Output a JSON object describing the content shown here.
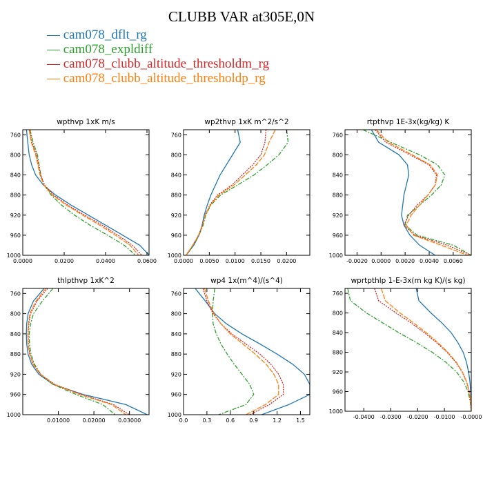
{
  "title": "CLUBB VAR at305E,0N",
  "legend": [
    {
      "label": "cam078_dflt_rg",
      "color": "#1f77b4",
      "dash": ""
    },
    {
      "label": "cam078_expldiff",
      "color": "#2ca02c",
      "dash": "6,2,2,2"
    },
    {
      "label": "cam078_clubb_altitude_thresholdm_rg",
      "color": "#d62728",
      "dash": "2,1.5"
    },
    {
      "label": "cam078_clubb_altitude_thresholdp_rg",
      "color": "#ff7f0e",
      "dash": "7,2"
    }
  ],
  "chart_data": [
    {
      "type": "line",
      "title": "wpthvp  1xK m/s",
      "xlim": [
        0,
        0.061
      ],
      "ylim": [
        1000,
        750
      ],
      "xticks": [
        "0.0000",
        "0.0200",
        "0.0400",
        "0.0600"
      ],
      "xtick_values": [
        0,
        0.02,
        0.04,
        0.06
      ],
      "yticks": [
        "760",
        "800",
        "840",
        "880",
        "920",
        "960",
        "1000"
      ],
      "y": [
        750,
        775,
        800,
        820,
        840,
        860,
        880,
        900,
        920,
        940,
        960,
        980,
        1000
      ],
      "series": [
        {
          "name": "cam078_dflt_rg",
          "x": [
            0.0018,
            0.0024,
            0.0031,
            0.0043,
            0.0062,
            0.0099,
            0.0158,
            0.0233,
            0.0317,
            0.04,
            0.0483,
            0.0565,
            0.0612
          ]
        },
        {
          "name": "cam078_expldiff",
          "x": [
            0.0035,
            0.005,
            0.0071,
            0.0079,
            0.0087,
            0.0103,
            0.0137,
            0.0187,
            0.025,
            0.0325,
            0.041,
            0.049,
            0.0545
          ]
        },
        {
          "name": "cam078_clubb_altitude_thresholdm_rg",
          "x": [
            0.0033,
            0.0044,
            0.0066,
            0.0077,
            0.0086,
            0.0105,
            0.0148,
            0.0217,
            0.0299,
            0.0384,
            0.046,
            0.053,
            0.0575
          ]
        },
        {
          "name": "cam078_clubb_altitude_thresholdp_rg",
          "x": [
            0.0031,
            0.0041,
            0.0062,
            0.0073,
            0.0083,
            0.0102,
            0.0143,
            0.021,
            0.029,
            0.0372,
            0.0448,
            0.0518,
            0.056
          ]
        }
      ]
    },
    {
      "type": "line",
      "title": "wp2thvp  1xK m^2/s^2",
      "xlim": [
        0,
        0.0245
      ],
      "ylim": [
        1000,
        750
      ],
      "xticks": [
        "0.0000",
        "0.0050",
        "0.0100",
        "0.0150",
        "0.0200"
      ],
      "xtick_values": [
        0,
        0.005,
        0.01,
        0.015,
        0.02
      ],
      "yticks": [
        "760",
        "800",
        "840",
        "880",
        "920",
        "960",
        "1000"
      ],
      "y": [
        750,
        775,
        800,
        820,
        840,
        860,
        880,
        900,
        920,
        940,
        960,
        980,
        1000
      ],
      "series": [
        {
          "name": "cam078_dflt_rg",
          "x": [
            0.0105,
            0.011,
            0.0095,
            0.0083,
            0.0071,
            0.0062,
            0.0053,
            0.0046,
            0.004,
            0.0036,
            0.003,
            0.002,
            0.0005
          ]
        },
        {
          "name": "cam078_expldiff",
          "x": [
            0.02,
            0.0203,
            0.0185,
            0.0162,
            0.0137,
            0.0105,
            0.0072,
            0.0053,
            0.0043,
            0.0038,
            0.003,
            0.0019,
            0.0005
          ]
        },
        {
          "name": "cam078_clubb_altitude_thresholdm_rg",
          "x": [
            0.016,
            0.0158,
            0.015,
            0.0134,
            0.0114,
            0.0094,
            0.0066,
            0.0051,
            0.0042,
            0.0037,
            0.0029,
            0.0018,
            0.0005
          ]
        },
        {
          "name": "cam078_clubb_altitude_thresholdp_rg",
          "x": [
            0.0178,
            0.0166,
            0.0157,
            0.0141,
            0.012,
            0.0098,
            0.0069,
            0.0052,
            0.0042,
            0.0037,
            0.0029,
            0.0018,
            0.0005
          ]
        }
      ]
    },
    {
      "type": "line",
      "title": "rtpthvp  1E-3x(kg/kg) K",
      "xlim": [
        -0.003,
        0.0075
      ],
      "ylim": [
        1000,
        750
      ],
      "xticks": [
        "-0.0020",
        "0.0000",
        "0.0020",
        "0.0040",
        "0.0060"
      ],
      "xtick_values": [
        -0.002,
        0,
        0.002,
        0.004,
        0.006
      ],
      "yticks": [
        "760",
        "800",
        "840",
        "880",
        "920",
        "960",
        "1000"
      ],
      "y": [
        750,
        775,
        800,
        820,
        840,
        860,
        880,
        900,
        920,
        940,
        960,
        980,
        1000
      ],
      "series": [
        {
          "name": "cam078_dflt_rg",
          "x": [
            -0.0008,
            -0.0002,
            0.0015,
            0.0022,
            0.0023,
            0.0021,
            0.0019,
            0.0018,
            0.0017,
            0.0019,
            0.0024,
            0.0032,
            0.0045
          ]
        },
        {
          "name": "cam078_expldiff",
          "x": [
            -0.0015,
            0.0008,
            0.0032,
            0.0047,
            0.0053,
            0.005,
            0.0042,
            0.0032,
            0.0022,
            0.002,
            0.003,
            0.006,
            0.0075
          ]
        },
        {
          "name": "cam078_clubb_altitude_thresholdm_rg",
          "x": [
            -0.0005,
            0.0004,
            0.0024,
            0.004,
            0.0046,
            0.0045,
            0.0039,
            0.003,
            0.0023,
            0.0019,
            0.0028,
            0.0055,
            0.0075
          ]
        },
        {
          "name": "cam078_clubb_altitude_thresholdp_rg",
          "x": [
            -0.0004,
            0.0006,
            0.0026,
            0.0041,
            0.0047,
            0.0045,
            0.0039,
            0.0032,
            0.0025,
            0.0021,
            0.0027,
            0.005,
            0.0072
          ]
        }
      ]
    },
    {
      "type": "line",
      "title": "thlpthvp  1xK^2",
      "xlim": [
        0,
        0.0355
      ],
      "ylim": [
        1000,
        750
      ],
      "xticks": [
        "0.01000",
        "0.02000",
        "0.03000"
      ],
      "xtick_values": [
        0.01,
        0.02,
        0.03
      ],
      "yticks": [
        "760",
        "800",
        "840",
        "880",
        "920",
        "960",
        "1000"
      ],
      "y": [
        750,
        775,
        800,
        820,
        840,
        860,
        880,
        900,
        920,
        940,
        960,
        980,
        1000
      ],
      "series": [
        {
          "name": "cam078_dflt_rg",
          "x": [
            0.006,
            0.003,
            0.0015,
            0.0011,
            0.001,
            0.0011,
            0.0015,
            0.0025,
            0.0045,
            0.0085,
            0.017,
            0.029,
            0.035
          ]
        },
        {
          "name": "cam078_expldiff",
          "x": [
            0.0085,
            0.0055,
            0.003,
            0.0022,
            0.0018,
            0.0019,
            0.0023,
            0.0033,
            0.005,
            0.0085,
            0.015,
            0.0225,
            0.026
          ]
        },
        {
          "name": "cam078_clubb_altitude_thresholdm_rg",
          "x": [
            0.007,
            0.004,
            0.0022,
            0.0017,
            0.0015,
            0.0016,
            0.002,
            0.003,
            0.005,
            0.009,
            0.0165,
            0.0255,
            0.03
          ]
        },
        {
          "name": "cam078_clubb_altitude_thresholdp_rg",
          "x": [
            0.0065,
            0.0037,
            0.002,
            0.0016,
            0.0014,
            0.0015,
            0.0019,
            0.0029,
            0.0049,
            0.0088,
            0.016,
            0.025,
            0.029
          ]
        }
      ]
    },
    {
      "type": "line",
      "title": "wp4  1x(m^4)/(s^4)",
      "xlim": [
        0,
        1.62
      ],
      "ylim": [
        1000,
        750
      ],
      "xticks": [
        "0.0",
        "0.3",
        "0.6",
        "0.9",
        "1.2",
        "1.5"
      ],
      "xtick_values": [
        0,
        0.3,
        0.6,
        0.9,
        1.2,
        1.5
      ],
      "yticks": [
        "760",
        "800",
        "840",
        "880",
        "920",
        "960",
        "1000"
      ],
      "y": [
        750,
        775,
        800,
        820,
        840,
        860,
        880,
        900,
        920,
        940,
        960,
        980,
        1000
      ],
      "series": [
        {
          "name": "cam078_dflt_rg",
          "x": [
            0.15,
            0.28,
            0.4,
            0.55,
            0.75,
            0.98,
            1.2,
            1.4,
            1.55,
            1.62,
            1.62,
            1.35,
            1.0
          ]
        },
        {
          "name": "cam078_expldiff",
          "x": [
            0.4,
            0.38,
            0.37,
            0.38,
            0.42,
            0.48,
            0.56,
            0.65,
            0.75,
            0.85,
            0.9,
            0.8,
            0.45
          ]
        },
        {
          "name": "cam078_clubb_altitude_thresholdm_rg",
          "x": [
            0.25,
            0.3,
            0.38,
            0.48,
            0.62,
            0.8,
            0.98,
            1.12,
            1.22,
            1.28,
            1.28,
            1.1,
            0.85
          ]
        },
        {
          "name": "cam078_clubb_altitude_thresholdp_rg",
          "x": [
            0.27,
            0.32,
            0.39,
            0.48,
            0.6,
            0.76,
            0.92,
            1.06,
            1.16,
            1.22,
            1.22,
            1.05,
            0.8
          ]
        }
      ]
    },
    {
      "type": "line",
      "title": "wprtpthlp  1-E-3x(m kg K)/(s kg)",
      "xlim": [
        -0.047,
        0.0
      ],
      "ylim": [
        1000,
        750
      ],
      "xticks": [
        "-0.0400",
        "-0.0300",
        "-0.0200",
        "-0.0100",
        "-0.0000"
      ],
      "xtick_values": [
        -0.04,
        -0.03,
        -0.02,
        -0.01,
        0.0
      ],
      "yticks": [
        "760",
        "800",
        "840",
        "880",
        "920",
        "960",
        "1000"
      ],
      "y": [
        750,
        775,
        800,
        820,
        840,
        860,
        880,
        900,
        920,
        940,
        960,
        980,
        1000
      ],
      "series": [
        {
          "name": "cam078_dflt_rg",
          "x": [
            -0.0205,
            -0.0195,
            -0.015,
            -0.011,
            -0.0075,
            -0.005,
            -0.003,
            -0.0018,
            -0.001,
            -0.0005,
            -0.0002,
            -0.0001,
            0.0
          ]
        },
        {
          "name": "cam078_expldiff",
          "x": [
            -0.046,
            -0.045,
            -0.039,
            -0.033,
            -0.027,
            -0.0205,
            -0.0145,
            -0.0095,
            -0.0055,
            -0.0028,
            -0.0012,
            -0.0004,
            0.0
          ]
        },
        {
          "name": "cam078_clubb_altitude_thresholdm_rg",
          "x": [
            -0.036,
            -0.0345,
            -0.028,
            -0.0225,
            -0.0175,
            -0.013,
            -0.009,
            -0.0058,
            -0.0034,
            -0.0018,
            -0.0008,
            -0.0003,
            0.0
          ]
        },
        {
          "name": "cam078_clubb_altitude_thresholdp_rg",
          "x": [
            -0.0335,
            -0.032,
            -0.0265,
            -0.0215,
            -0.0168,
            -0.0125,
            -0.0087,
            -0.0056,
            -0.0033,
            -0.0017,
            -0.0007,
            -0.0002,
            0.0
          ]
        }
      ]
    }
  ]
}
